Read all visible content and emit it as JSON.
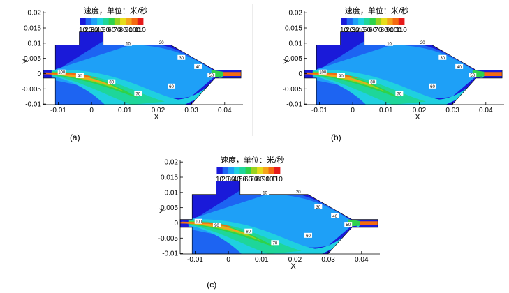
{
  "chart_data": [
    {
      "type": "heatmap",
      "panel": "(a)",
      "caption": "(a)",
      "legend_title": "速度，单位：米/秒",
      "legend_levels": [
        10,
        20,
        30,
        40,
        50,
        60,
        70,
        80,
        90,
        100,
        110
      ],
      "legend_labels": [
        "10",
        "20",
        "30",
        "40",
        "50",
        "60",
        "70",
        "80",
        "90",
        "100",
        "110"
      ],
      "xlabel": "X",
      "ylabel": "Y",
      "xlim": [
        -0.0145,
        0.0455
      ],
      "ylim": [
        -0.0102,
        0.0205
      ],
      "xticks": [
        "-0.01",
        "0",
        "0.01",
        "0.02",
        "0.03",
        "0.04"
      ],
      "yticks": [
        "-0.01",
        "-0.005",
        "0",
        "0.005",
        "0.01",
        "0.015",
        "0.02"
      ],
      "contour_labels": [
        "10",
        "20",
        "30",
        "40",
        "50",
        "60",
        "70",
        "80",
        "90",
        "100"
      ]
    },
    {
      "type": "heatmap",
      "panel": "(b)",
      "caption": "(b)",
      "legend_title": "速度，单位：米/秒",
      "legend_levels": [
        10,
        20,
        30,
        40,
        50,
        60,
        70,
        80,
        90,
        100,
        110
      ],
      "legend_labels": [
        "10",
        "20",
        "30",
        "40",
        "50",
        "60",
        "70",
        "80",
        "90",
        "100",
        "110"
      ],
      "xlabel": "X",
      "ylabel": "Y",
      "xlim": [
        -0.0145,
        0.0455
      ],
      "ylim": [
        -0.0102,
        0.0205
      ],
      "xticks": [
        "-0.01",
        "0",
        "0.01",
        "0.02",
        "0.03",
        "0.04"
      ],
      "yticks": [
        "-0.01",
        "-0.005",
        "0",
        "0.005",
        "0.01",
        "0.015",
        "0.02"
      ],
      "contour_labels": [
        "10",
        "20",
        "30",
        "40",
        "50",
        "60",
        "70",
        "80",
        "90",
        "100"
      ]
    },
    {
      "type": "heatmap",
      "panel": "(c)",
      "caption": "(c)",
      "legend_title": "速度，单位：米/秒",
      "legend_levels": [
        10,
        20,
        30,
        40,
        50,
        60,
        70,
        80,
        90,
        100,
        110
      ],
      "legend_labels": [
        "10",
        "20",
        "30",
        "40",
        "50",
        "60",
        "70",
        "80",
        "90",
        "100",
        "110"
      ],
      "xlabel": "X",
      "ylabel": "Y",
      "xlim": [
        -0.0145,
        0.0455
      ],
      "ylim": [
        -0.0102,
        0.0205
      ],
      "xticks": [
        "-0.01",
        "0",
        "0.01",
        "0.02",
        "0.03",
        "0.04"
      ],
      "yticks": [
        "-0.01",
        "-0.005",
        "0",
        "0.005",
        "0.01",
        "0.015",
        "0.02"
      ],
      "contour_labels": [
        "10",
        "20",
        "30",
        "40",
        "50",
        "60",
        "70",
        "80",
        "90",
        "100"
      ]
    }
  ],
  "colors": {
    "10": "#1a1ad9",
    "20": "#1d64f2",
    "30": "#1ea0f7",
    "40": "#1fd0e0",
    "50": "#1ed69a",
    "60": "#2ed24a",
    "70": "#9ad21e",
    "80": "#e6dd1a",
    "90": "#f5a41a",
    "100": "#f56a10",
    "110": "#e61a1a"
  }
}
